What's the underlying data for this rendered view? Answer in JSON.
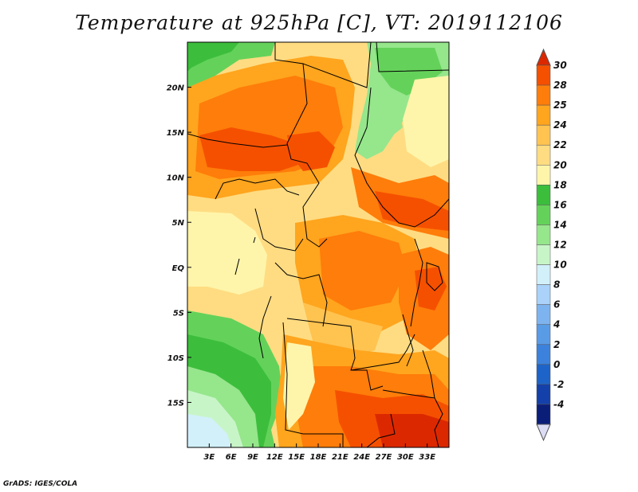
{
  "title": "Temperature at 925hPa [C], VT: 2019112106",
  "credit": "GrADS: IGES/COLA",
  "map": {
    "lon_range": [
      0,
      36
    ],
    "lat_range": [
      -20,
      25
    ],
    "x_ticks": [
      {
        "lon": 3,
        "label": "3E"
      },
      {
        "lon": 6,
        "label": "6E"
      },
      {
        "lon": 9,
        "label": "9E"
      },
      {
        "lon": 12,
        "label": "12E"
      },
      {
        "lon": 15,
        "label": "15E"
      },
      {
        "lon": 18,
        "label": "18E"
      },
      {
        "lon": 21,
        "label": "21E"
      },
      {
        "lon": 24,
        "label": "24E"
      },
      {
        "lon": 27,
        "label": "27E"
      },
      {
        "lon": 30,
        "label": "30E"
      },
      {
        "lon": 33,
        "label": "33E"
      }
    ],
    "y_ticks": [
      {
        "lat": 20,
        "label": "20N"
      },
      {
        "lat": 15,
        "label": "15N"
      },
      {
        "lat": 10,
        "label": "10N"
      },
      {
        "lat": 5,
        "label": "5N"
      },
      {
        "lat": 0,
        "label": "EQ"
      },
      {
        "lat": -5,
        "label": "5S"
      },
      {
        "lat": -10,
        "label": "10S"
      },
      {
        "lat": -15,
        "label": "15S"
      }
    ]
  },
  "colorbar": {
    "levels": [
      "-4",
      "-2",
      "0",
      "2",
      "4",
      "6",
      "8",
      "10",
      "12",
      "14",
      "16",
      "18",
      "20",
      "22",
      "24",
      "25",
      "28",
      "30"
    ],
    "colors": [
      "#dcdcf5",
      "#0a1e78",
      "#1440aa",
      "#1e64c8",
      "#3c82dc",
      "#5a9be6",
      "#7db4f0",
      "#aad2fa",
      "#d2f0fa",
      "#c8f5c8",
      "#96e68c",
      "#64d25a",
      "#3cbe3c",
      "#fff5aa",
      "#ffdc82",
      "#ffc350",
      "#ffa51e",
      "#ff7d0a",
      "#f55000",
      "#dc2800"
    ]
  }
}
